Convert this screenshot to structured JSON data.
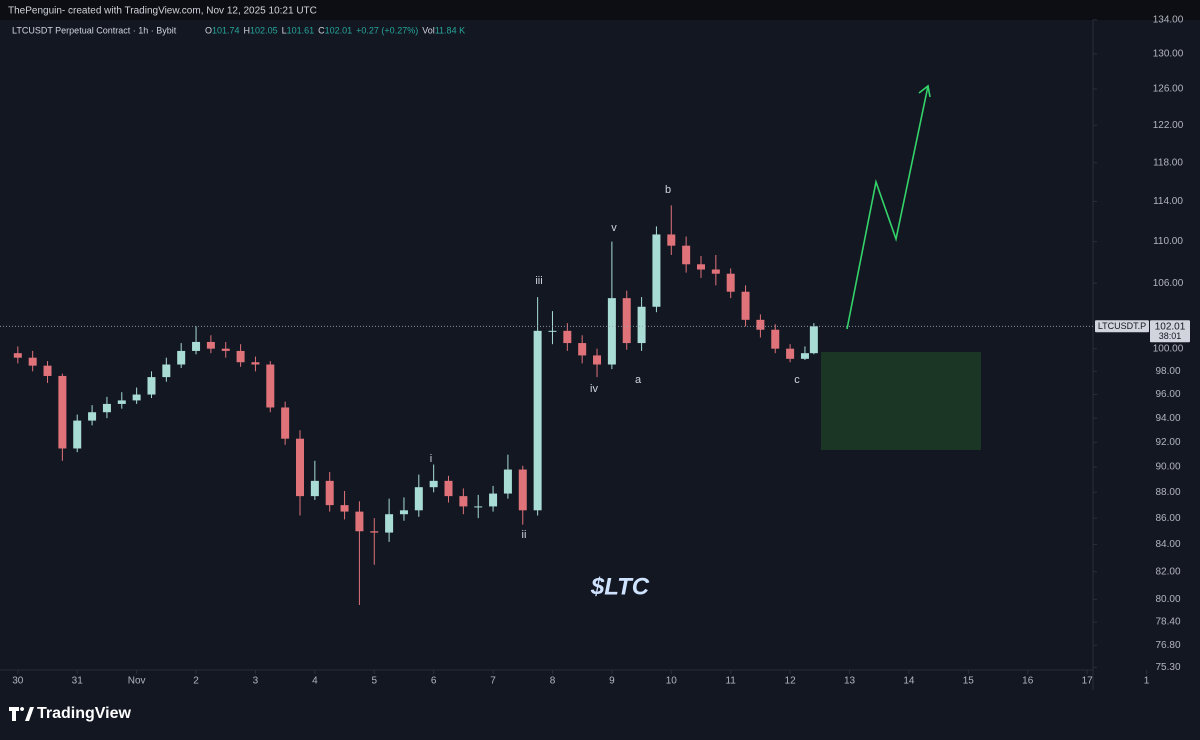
{
  "header": {
    "credit": "ThePenguin- created with TradingView.com, Nov 12, 2025 10:21 UTC",
    "logo": "TradingView",
    "ticker_note": "$LTC"
  },
  "chart_data": {
    "type": "candlestick",
    "title": "LTCUSDT Perpetual Contract · 1h · Bybit",
    "legend_values": [
      "O",
      "101.74",
      "H",
      "102.05",
      "L",
      "101.61",
      "C",
      "102.01",
      "+0.27 (+0.27%)",
      "Vol",
      "11.84 K"
    ],
    "up_color": "#a8dcd5",
    "down_color": "#e0727a",
    "x": [
      0,
      0.25,
      0.5,
      0.75,
      1,
      1.25,
      1.5,
      1.75,
      2,
      2.25,
      2.5,
      2.75,
      3,
      3.25,
      3.5,
      3.75,
      4,
      4.25,
      4.5,
      4.75,
      5,
      5.25,
      5.5,
      5.75,
      6,
      6.25,
      6.5,
      6.75,
      7,
      7.25,
      7.5,
      7.75,
      8,
      8.25,
      8.5,
      8.75,
      9,
      9.25,
      9.5,
      9.75,
      10,
      10.25,
      10.5,
      10.75,
      11,
      11.25,
      11.5,
      11.75,
      12,
      12.25,
      12.5,
      12.75,
      13,
      13.25,
      13.4
    ],
    "open": [
      99.6,
      99.2,
      98.5,
      97.6,
      91.5,
      93.8,
      94.5,
      95.2,
      95.5,
      96.0,
      97.5,
      98.6,
      99.8,
      100.6,
      100.0,
      99.8,
      98.8,
      98.6,
      94.9,
      92.3,
      87.7,
      88.9,
      87.0,
      86.5,
      85.0,
      84.9,
      86.3,
      86.6,
      88.4,
      88.9,
      87.7,
      86.9,
      86.9,
      87.9,
      89.8,
      86.6,
      101.6,
      101.6,
      100.5,
      99.4,
      98.6,
      104.6,
      100.5,
      103.8,
      110.7,
      109.6,
      107.8,
      107.3,
      106.9,
      105.2,
      102.6,
      101.7,
      100.0,
      99.1,
      99.6
    ],
    "high": [
      100.2,
      99.8,
      98.9,
      97.8,
      94.3,
      95.1,
      95.8,
      96.2,
      96.6,
      98.0,
      99.2,
      100.5,
      102.0,
      101.2,
      100.6,
      100.4,
      99.3,
      98.9,
      95.4,
      93.0,
      90.5,
      89.6,
      88.1,
      87.3,
      86.0,
      87.5,
      87.6,
      89.4,
      90.2,
      89.3,
      88.3,
      87.8,
      88.5,
      91.0,
      90.1,
      104.7,
      103.4,
      102.3,
      101.2,
      100.0,
      110.0,
      105.3,
      104.7,
      111.5,
      113.6,
      110.5,
      108.6,
      108.7,
      107.4,
      105.8,
      103.1,
      102.2,
      100.4,
      100.2,
      102.3
    ],
    "low": [
      98.7,
      98.0,
      97.0,
      90.5,
      91.2,
      93.4,
      94.0,
      94.8,
      95.2,
      95.7,
      97.1,
      98.3,
      99.5,
      99.6,
      99.2,
      98.4,
      98.0,
      94.5,
      91.8,
      86.2,
      87.4,
      86.5,
      85.9,
      79.6,
      82.5,
      84.2,
      85.8,
      86.1,
      88.0,
      87.2,
      86.3,
      86.0,
      86.5,
      87.5,
      85.5,
      86.2,
      100.4,
      99.8,
      98.7,
      97.5,
      98.2,
      99.9,
      99.8,
      103.3,
      108.7,
      107.0,
      106.5,
      105.8,
      104.6,
      102.0,
      101.0,
      99.6,
      98.8,
      99.0,
      99.5
    ],
    "close": [
      99.2,
      98.5,
      97.6,
      91.5,
      93.8,
      94.5,
      95.2,
      95.5,
      96.0,
      97.5,
      98.6,
      99.8,
      100.6,
      100.0,
      99.8,
      98.8,
      98.6,
      94.9,
      92.3,
      87.7,
      88.9,
      87.0,
      86.5,
      85.0,
      84.9,
      86.3,
      86.6,
      88.4,
      88.9,
      87.7,
      86.9,
      86.9,
      87.9,
      89.8,
      86.6,
      101.6,
      101.6,
      100.5,
      99.4,
      98.6,
      104.6,
      100.5,
      103.8,
      110.7,
      109.6,
      107.8,
      107.3,
      106.9,
      105.2,
      102.6,
      101.7,
      100.0,
      99.1,
      99.6,
      102.01
    ],
    "log_scale": true,
    "ylim": [
      73.8,
      134.7
    ],
    "yticks": [
      {
        "value": 134,
        "label": "134.00"
      },
      {
        "value": 130,
        "label": "130.00"
      },
      {
        "value": 126,
        "label": "126.00"
      },
      {
        "value": 122,
        "label": "122.00"
      },
      {
        "value": 118,
        "label": "118.00"
      },
      {
        "value": 114,
        "label": "114.00"
      },
      {
        "value": 110,
        "label": "110.00"
      },
      {
        "value": 106,
        "label": "106.00"
      },
      {
        "value": 100,
        "label": "100.00"
      },
      {
        "value": 98,
        "label": "98.00"
      },
      {
        "value": 96,
        "label": "96.00"
      },
      {
        "value": 94,
        "label": "94.00"
      },
      {
        "value": 92,
        "label": "92.00"
      },
      {
        "value": 90,
        "label": "90.00"
      },
      {
        "value": 88,
        "label": "88.00"
      },
      {
        "value": 86,
        "label": "86.00"
      },
      {
        "value": 84,
        "label": "84.00"
      },
      {
        "value": 82,
        "label": "82.00"
      },
      {
        "value": 80,
        "label": "80.00"
      },
      {
        "value": 78.4,
        "label": "78.40"
      },
      {
        "value": 76.8,
        "label": "76.80"
      },
      {
        "value": 75.3,
        "label": "75.30"
      }
    ],
    "xlim": [
      -0.3,
      19.9
    ],
    "xticks": [
      {
        "value": 0,
        "label": "30"
      },
      {
        "value": 1,
        "label": "31"
      },
      {
        "value": 2,
        "label": "Nov"
      },
      {
        "value": 3,
        "label": "2"
      },
      {
        "value": 4,
        "label": "3"
      },
      {
        "value": 5,
        "label": "4"
      },
      {
        "value": 6,
        "label": "5"
      },
      {
        "value": 7,
        "label": "6"
      },
      {
        "value": 8,
        "label": "7"
      },
      {
        "value": 9,
        "label": "8"
      },
      {
        "value": 10,
        "label": "9"
      },
      {
        "value": 11,
        "label": "10"
      },
      {
        "value": 12,
        "label": "11"
      },
      {
        "value": 13,
        "label": "12"
      },
      {
        "value": 14,
        "label": "13"
      },
      {
        "value": 15,
        "label": "14"
      },
      {
        "value": 16,
        "label": "15"
      },
      {
        "value": 17,
        "label": "16"
      },
      {
        "value": 18,
        "label": "17"
      },
      {
        "value": 19,
        "label": "1"
      }
    ],
    "last_price": {
      "value": 102.01,
      "label": "102.01",
      "symbol": "LTCUSDT.P",
      "countdown": "38:01"
    },
    "wave_labels": [
      "i",
      "ii",
      "iii",
      "iv",
      "v",
      "a",
      "b",
      "c"
    ]
  }
}
